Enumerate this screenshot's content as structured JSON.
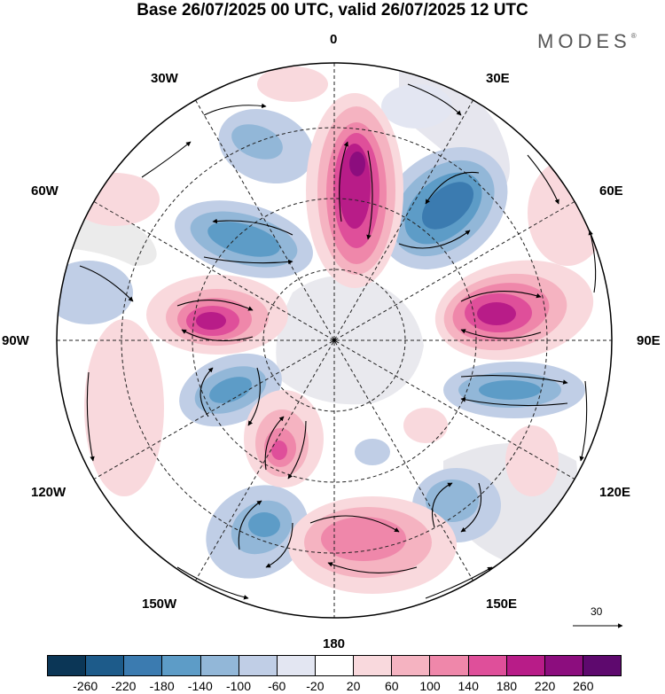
{
  "title": "Base 26/07/2025 00 UTC, valid 26/07/2025 12 UTC",
  "brand": "MODES",
  "brand_mark": "®",
  "map": {
    "projection": "south-polar-stereographic",
    "lon_labels": {
      "top": "0",
      "top_right": "30E",
      "right_top": "60E",
      "right": "90E",
      "right_bottom": "120E",
      "bottom_right": "150E",
      "bottom": "180",
      "bottom_left": "150W",
      "left_bottom": "120W",
      "left": "90W",
      "left_top": "60W",
      "top_left": "30W"
    }
  },
  "reference_vector": {
    "label": "30"
  },
  "colorbar": {
    "colors": [
      "#0b3656",
      "#1d5b8a",
      "#3b7bb0",
      "#5d9cc7",
      "#92b7d8",
      "#c0cee6",
      "#e3e6f2",
      "#ffffff",
      "#f9d9dd",
      "#f5b3c1",
      "#ef87aa",
      "#df4f9a",
      "#b81c88",
      "#8c0d7e",
      "#5e096e"
    ],
    "ticks": [
      "-260",
      "-220",
      "-180",
      "-140",
      "-100",
      "-60",
      "-20",
      "20",
      "60",
      "100",
      "140",
      "180",
      "220",
      "260"
    ]
  }
}
